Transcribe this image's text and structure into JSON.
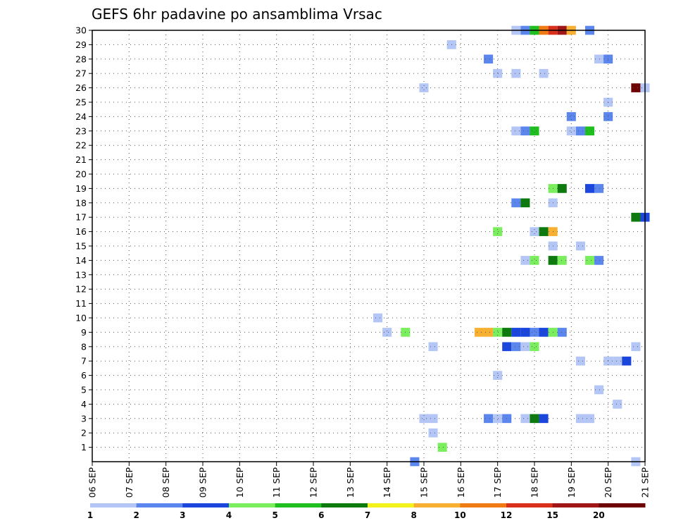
{
  "chart_data": {
    "type": "heatmap",
    "title": "GEFS 6hr padavine po ansamblima Vrsac",
    "y_ticks": [
      "1",
      "2",
      "3",
      "4",
      "5",
      "6",
      "7",
      "8",
      "9",
      "10",
      "11",
      "12",
      "13",
      "14",
      "15",
      "16",
      "17",
      "18",
      "19",
      "20",
      "21",
      "22",
      "23",
      "24",
      "25",
      "26",
      "27",
      "28",
      "29",
      "30"
    ],
    "y_range": [
      0,
      30
    ],
    "x_ticks": [
      "06 SEP",
      "07 SEP",
      "08 SEP",
      "09 SEP",
      "10 SEP",
      "11 SEP",
      "12 SEP",
      "13 SEP",
      "14 SEP",
      "15 SEP",
      "16 SEP",
      "17 SEP",
      "18 SEP",
      "19 SEP",
      "20 SEP",
      "21 SEP"
    ],
    "x_range_days": [
      0,
      15
    ],
    "step_days": 0.25,
    "grid": true,
    "legend": {
      "position": "bottom",
      "labels": [
        "1",
        "2",
        "3",
        "4",
        "5",
        "6",
        "7",
        "8",
        "10",
        "12",
        "15",
        "20"
      ],
      "colors": [
        "#b3c6f5",
        "#5b86ee",
        "#1b46dd",
        "#7bee5e",
        "#1ebf1e",
        "#0d7a0d",
        "#f4f21c",
        "#f7b032",
        "#f07a14",
        "#d8301a",
        "#a11717",
        "#6e0303"
      ]
    },
    "cells": [
      {
        "member": 30,
        "day": 11.5,
        "level": 1
      },
      {
        "member": 30,
        "day": 11.75,
        "level": 2
      },
      {
        "member": 30,
        "day": 12.0,
        "level": 5
      },
      {
        "member": 30,
        "day": 12.25,
        "level": 9
      },
      {
        "member": 30,
        "day": 12.5,
        "level": 10
      },
      {
        "member": 30,
        "day": 12.75,
        "level": 11
      },
      {
        "member": 30,
        "day": 13.0,
        "level": 8
      },
      {
        "member": 30,
        "day": 13.5,
        "level": 2
      },
      {
        "member": 29,
        "day": 9.75,
        "level": 1
      },
      {
        "member": 28,
        "day": 10.75,
        "level": 2
      },
      {
        "member": 28,
        "day": 13.75,
        "level": 1
      },
      {
        "member": 28,
        "day": 14.0,
        "level": 2
      },
      {
        "member": 27,
        "day": 11.0,
        "level": 1
      },
      {
        "member": 27,
        "day": 11.5,
        "level": 1
      },
      {
        "member": 27,
        "day": 12.25,
        "level": 1
      },
      {
        "member": 26,
        "day": 9.0,
        "level": 1
      },
      {
        "member": 26,
        "day": 14.75,
        "level": 12
      },
      {
        "member": 26,
        "day": 15.0,
        "level": 1
      },
      {
        "member": 25,
        "day": 14.0,
        "level": 1
      },
      {
        "member": 24,
        "day": 13.0,
        "level": 2
      },
      {
        "member": 24,
        "day": 14.0,
        "level": 2
      },
      {
        "member": 23,
        "day": 11.5,
        "level": 1
      },
      {
        "member": 23,
        "day": 11.75,
        "level": 2
      },
      {
        "member": 23,
        "day": 12.0,
        "level": 5
      },
      {
        "member": 23,
        "day": 13.0,
        "level": 1
      },
      {
        "member": 23,
        "day": 13.25,
        "level": 2
      },
      {
        "member": 23,
        "day": 13.5,
        "level": 5
      },
      {
        "member": 19,
        "day": 12.5,
        "level": 4
      },
      {
        "member": 19,
        "day": 12.75,
        "level": 6
      },
      {
        "member": 19,
        "day": 13.5,
        "level": 3
      },
      {
        "member": 19,
        "day": 13.75,
        "level": 2
      },
      {
        "member": 18,
        "day": 11.5,
        "level": 2
      },
      {
        "member": 18,
        "day": 11.75,
        "level": 6
      },
      {
        "member": 18,
        "day": 12.5,
        "level": 1
      },
      {
        "member": 17,
        "day": 14.75,
        "level": 6
      },
      {
        "member": 17,
        "day": 15.0,
        "level": 3
      },
      {
        "member": 16,
        "day": 11.0,
        "level": 4
      },
      {
        "member": 16,
        "day": 12.0,
        "level": 1
      },
      {
        "member": 16,
        "day": 12.25,
        "level": 6
      },
      {
        "member": 16,
        "day": 12.5,
        "level": 8
      },
      {
        "member": 15,
        "day": 12.5,
        "level": 1
      },
      {
        "member": 15,
        "day": 13.25,
        "level": 1
      },
      {
        "member": 14,
        "day": 11.75,
        "level": 1
      },
      {
        "member": 14,
        "day": 12.0,
        "level": 4
      },
      {
        "member": 14,
        "day": 12.5,
        "level": 6
      },
      {
        "member": 14,
        "day": 12.75,
        "level": 4
      },
      {
        "member": 14,
        "day": 13.5,
        "level": 4
      },
      {
        "member": 14,
        "day": 13.75,
        "level": 2
      },
      {
        "member": 10,
        "day": 7.75,
        "level": 1
      },
      {
        "member": 9,
        "day": 8.0,
        "level": 1
      },
      {
        "member": 9,
        "day": 8.5,
        "level": 4
      },
      {
        "member": 9,
        "day": 10.5,
        "level": 8
      },
      {
        "member": 9,
        "day": 10.75,
        "level": 8
      },
      {
        "member": 9,
        "day": 11.0,
        "level": 4
      },
      {
        "member": 9,
        "day": 11.25,
        "level": 6
      },
      {
        "member": 9,
        "day": 11.5,
        "level": 3
      },
      {
        "member": 9,
        "day": 11.75,
        "level": 3
      },
      {
        "member": 9,
        "day": 12.0,
        "level": 2
      },
      {
        "member": 9,
        "day": 12.25,
        "level": 3
      },
      {
        "member": 9,
        "day": 12.5,
        "level": 4
      },
      {
        "member": 9,
        "day": 12.75,
        "level": 2
      },
      {
        "member": 8,
        "day": 9.25,
        "level": 1
      },
      {
        "member": 8,
        "day": 11.25,
        "level": 3
      },
      {
        "member": 8,
        "day": 11.5,
        "level": 2
      },
      {
        "member": 8,
        "day": 11.75,
        "level": 1
      },
      {
        "member": 8,
        "day": 12.0,
        "level": 4
      },
      {
        "member": 8,
        "day": 14.75,
        "level": 1
      },
      {
        "member": 7,
        "day": 13.25,
        "level": 1
      },
      {
        "member": 7,
        "day": 14.0,
        "level": 1
      },
      {
        "member": 7,
        "day": 14.25,
        "level": 1
      },
      {
        "member": 7,
        "day": 14.5,
        "level": 3
      },
      {
        "member": 6,
        "day": 11.0,
        "level": 1
      },
      {
        "member": 5,
        "day": 13.75,
        "level": 1
      },
      {
        "member": 4,
        "day": 14.25,
        "level": 1
      },
      {
        "member": 3,
        "day": 9.0,
        "level": 1
      },
      {
        "member": 3,
        "day": 9.25,
        "level": 1
      },
      {
        "member": 3,
        "day": 10.75,
        "level": 2
      },
      {
        "member": 3,
        "day": 11.0,
        "level": 1
      },
      {
        "member": 3,
        "day": 11.25,
        "level": 2
      },
      {
        "member": 3,
        "day": 11.75,
        "level": 1
      },
      {
        "member": 3,
        "day": 12.0,
        "level": 6
      },
      {
        "member": 3,
        "day": 12.25,
        "level": 3
      },
      {
        "member": 3,
        "day": 13.25,
        "level": 1
      },
      {
        "member": 3,
        "day": 13.5,
        "level": 1
      },
      {
        "member": 2,
        "day": 9.25,
        "level": 1
      },
      {
        "member": 1,
        "day": 9.5,
        "level": 4
      },
      {
        "member": 0,
        "day": 8.75,
        "level": 2
      },
      {
        "member": 0,
        "day": 14.75,
        "level": 1
      }
    ]
  }
}
